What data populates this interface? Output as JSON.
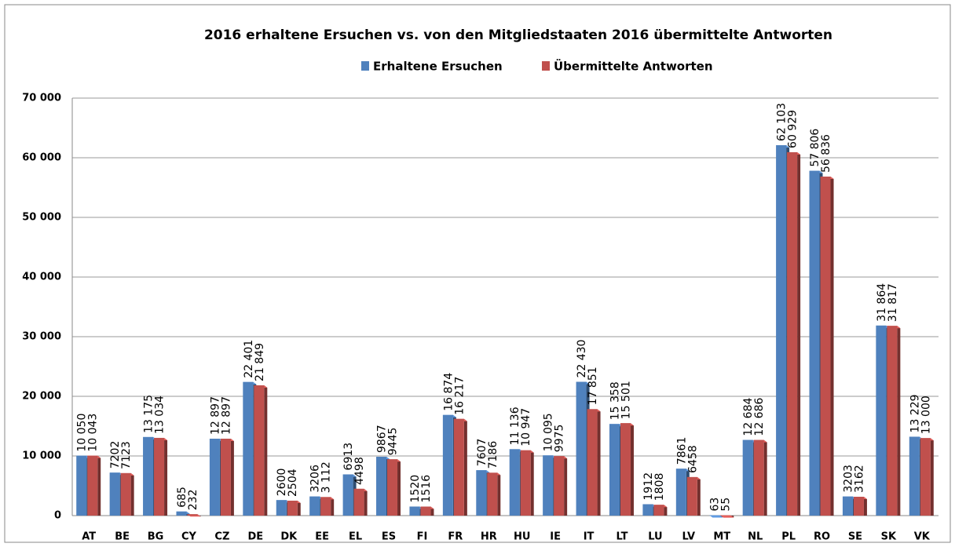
{
  "chart_data": {
    "type": "bar",
    "title": "2016 erhaltene Ersuchen vs. von den Mitgliedstaaten  2016 übermittelte  Antworten",
    "categories": [
      "AT",
      "BE",
      "BG",
      "CY",
      "CZ",
      "DE",
      "DK",
      "EE",
      "EL",
      "ES",
      "FI",
      "FR",
      "HR",
      "HU",
      "IE",
      "IT",
      "LT",
      "LU",
      "LV",
      "MT",
      "NL",
      "PL",
      "RO",
      "SE",
      "SK",
      "VK"
    ],
    "series": [
      {
        "name": "Erhaltene Ersuchen",
        "color": "#4f81bd",
        "values": [
          10050,
          7202,
          13175,
          685,
          12897,
          22401,
          2600,
          3206,
          6913,
          9867,
          1520,
          16874,
          7607,
          11136,
          10095,
          22430,
          15358,
          1912,
          7861,
          63,
          12684,
          62103,
          57806,
          3203,
          31864,
          13229
        ],
        "value_labels": [
          "10 050",
          "7202",
          "13 175",
          "685",
          "12 897",
          "22 401",
          "2600",
          "3206",
          "6913",
          "9867",
          "1520",
          "16 874",
          "7607",
          "11 136",
          "10 095",
          "22 430",
          "15 358",
          "1912",
          "7861",
          "63",
          "12 684",
          "62 103",
          "57 806",
          "3203",
          "31 864",
          "13 229"
        ]
      },
      {
        "name": "Übermittelte Antworten",
        "color": "#c0504d",
        "values": [
          10043,
          7123,
          13034,
          232,
          12897,
          21849,
          2504,
          3112,
          4498,
          9445,
          1516,
          16217,
          7186,
          10947,
          9975,
          17851,
          15501,
          1808,
          6458,
          55,
          12686,
          60929,
          56836,
          3162,
          31817,
          13000
        ],
        "value_labels": [
          "10 043",
          "7123",
          "13 034",
          "232",
          "12 897",
          "21 849",
          "2504",
          "3 112",
          "4498",
          "9445",
          "1516",
          "16 217",
          "7186",
          "10 947",
          "9975",
          "17 851",
          "15 501",
          "1808",
          "6458",
          "55",
          "12 686",
          "60 929",
          "56 836",
          "3162",
          "31 817",
          "13 000"
        ]
      }
    ],
    "ylim": [
      0,
      70000
    ],
    "yticks": [
      0,
      {
        "value": 10000,
        "label": "10 000"
      },
      {
        "value": 20000,
        "label": "20 000"
      },
      {
        "value": 30000,
        "label": "30 000"
      },
      {
        "value": 40000,
        "label": "40 000"
      },
      {
        "value": 50000,
        "label": "50 000"
      },
      {
        "value": 60000,
        "label": "60 000"
      },
      {
        "value": 70000,
        "label": "70 000"
      }
    ],
    "grid": true,
    "legend": "top"
  }
}
